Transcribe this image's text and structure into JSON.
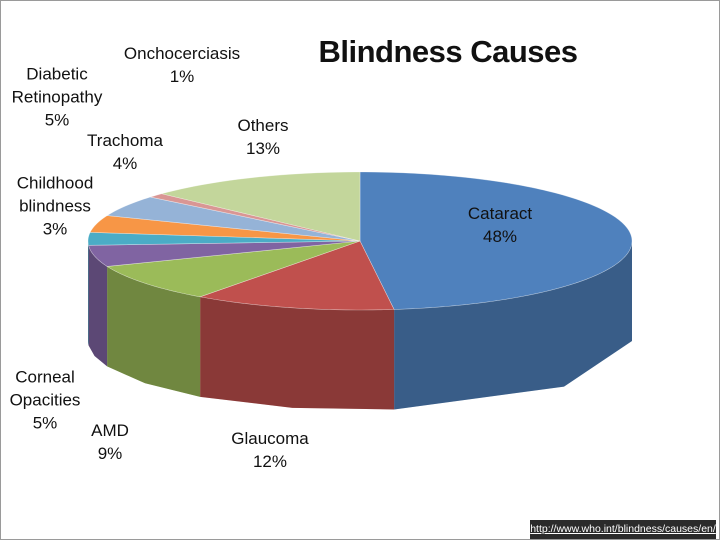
{
  "chart_data": {
    "type": "pie3d",
    "title": "Blindness Causes",
    "categories": [
      "Cataract",
      "Glaucoma",
      "AMD",
      "Corneal Opacities",
      "Childhood blindness",
      "Trachoma",
      "Diabetic Retinopathy",
      "Onchocerciasis",
      "Others"
    ],
    "values": [
      48,
      12,
      9,
      5,
      3,
      4,
      5,
      1,
      13
    ],
    "value_labels": [
      "48%",
      "12%",
      "9%",
      "5%",
      "3%",
      "4%",
      "5%",
      "1%",
      "13%"
    ],
    "colors": [
      "#4f81bd",
      "#c0504d",
      "#9bbb59",
      "#8064a2",
      "#4bacc6",
      "#f79646",
      "#95b3d7",
      "#d99694",
      "#c3d69b"
    ]
  },
  "source": "http://www.who.int/blindness/causes/en/"
}
